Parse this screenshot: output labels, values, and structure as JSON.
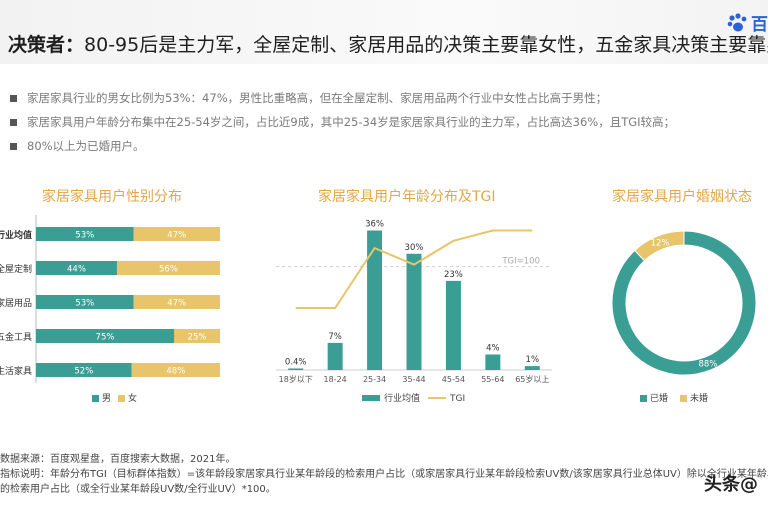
{
  "title": {
    "prefix": "决策者：",
    "text": "80-95后是主力军，全屋定制、家居用品的决策主要靠女性，五金家具决策主要靠男性"
  },
  "logo": {
    "text": "百",
    "icon": "paw-icon",
    "color": "#2a63d6"
  },
  "bullets": [
    "家居家具行业的男女比例为53%：47%，男性比重略高，但在全屋定制、家居用品两个行业中女性占比高于男性；",
    "家居家具用户年龄分布集中在25-54岁之间，占比近9成，其中25-34岁是家居家具行业的主力军，占比高达36%，且TGI较高；",
    "80%以上为已婚用户。"
  ],
  "colors": {
    "teal": "#3a9e95",
    "gold": "#e8c56a",
    "title_orange": "#e0a84a"
  },
  "chart_data": [
    {
      "type": "bar",
      "orientation": "horizontal",
      "stacked": true,
      "title": "家居家具用户性别分布",
      "categories": [
        "行业均值",
        "全屋定制",
        "家居用品",
        "五金工具",
        "生活家具"
      ],
      "series": [
        {
          "name": "男",
          "values": [
            53,
            44,
            53,
            75,
            52
          ],
          "labels": [
            "53%",
            "44%",
            "53%",
            "75%",
            "52%"
          ]
        },
        {
          "name": "女",
          "values": [
            47,
            56,
            47,
            25,
            48
          ],
          "labels": [
            "47%",
            "56%",
            "47%",
            "25%",
            "48%"
          ]
        }
      ],
      "legend": "bottom"
    },
    {
      "type": "bar",
      "title": "家居家具用户年龄分布及TGI",
      "categories": [
        "18岁以下",
        "18-24",
        "25-34",
        "35-44",
        "45-54",
        "55-64",
        "65岁以上"
      ],
      "series": [
        {
          "name": "行业均值",
          "type": "bar",
          "values": [
            0.4,
            7,
            36,
            30,
            23,
            4,
            1
          ],
          "labels": [
            "0.4%",
            "7%",
            "36%",
            "30%",
            "23%",
            "4%",
            "1%"
          ]
        },
        {
          "name": "TGI",
          "type": "line",
          "values": [
            60,
            60,
            118,
            102,
            125,
            135,
            135
          ]
        }
      ],
      "reference_line": {
        "label": "TGI=100",
        "value": 100
      },
      "ylim_bar": [
        0,
        40
      ],
      "ylim_tgi": [
        0,
        150
      ],
      "legend": "bottom"
    },
    {
      "type": "pie",
      "donut": true,
      "title": "家居家具用户婚姻状态",
      "labels": [
        "已婚",
        "未婚"
      ],
      "values": [
        88,
        12
      ],
      "value_labels": [
        "88%",
        "12%"
      ],
      "legend": "bottom"
    }
  ],
  "footer": [
    "数据来源：百度观星盘，百度搜索大数据，2021年。",
    "指标说明：年龄分布TGI（目标群体指数）=该年龄段家居家具行业某年龄段的检索用户占比（或家居家具行业某年龄段检索UV数/该家居家具行业总体UV）除以全行业某年龄段",
    "的检索用户占比（或全行业某年龄段UV数/全行业UV）*100。"
  ],
  "watermark": "头条@"
}
